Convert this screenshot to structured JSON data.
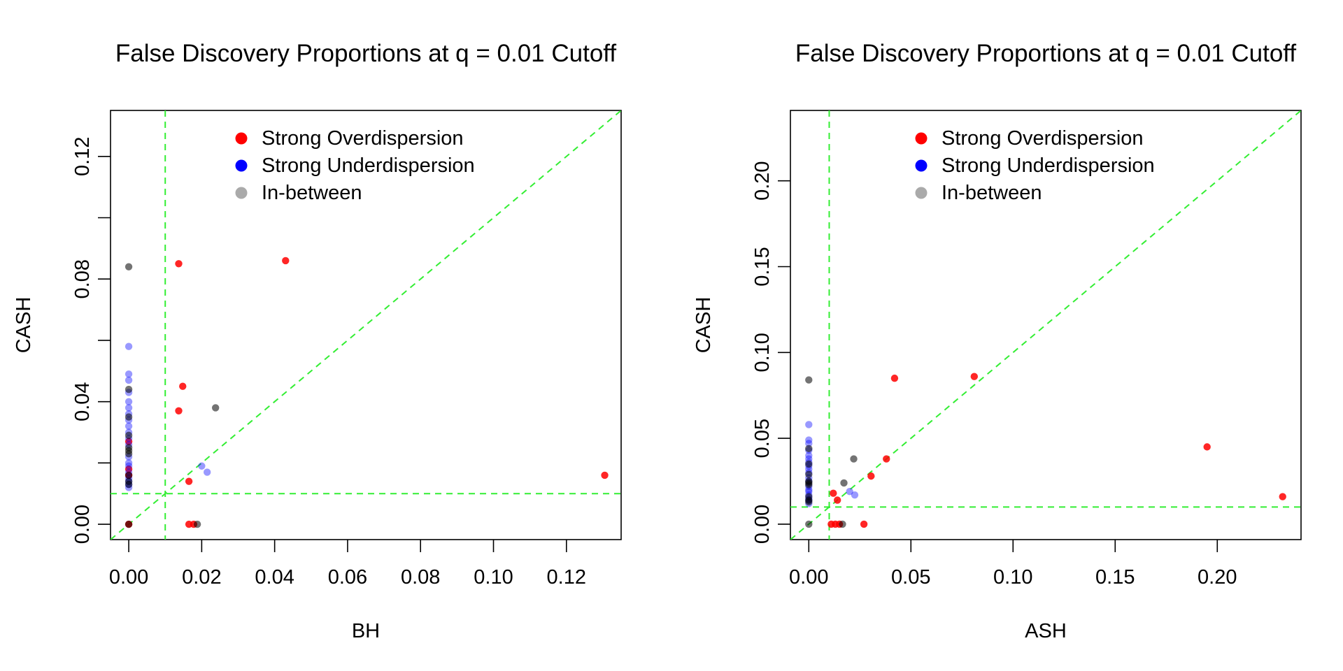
{
  "colors": {
    "overdispersion": "#ff0000",
    "underdispersion": "#0000ff",
    "inbetween": "#000000",
    "inbetween_legend": "#aaaaaa",
    "reference_lines": "#33ee33"
  },
  "chart_data": [
    {
      "type": "scatter",
      "title": "False Discovery Proportions at q = 0.01 Cutoff",
      "xlabel": "BH",
      "ylabel": "CASH",
      "xlim": [
        -0.005,
        0.135
      ],
      "ylim": [
        -0.005,
        0.135
      ],
      "x_ticks": [
        "0.00",
        "0.02",
        "0.04",
        "0.06",
        "0.08",
        "0.10",
        "0.12"
      ],
      "y_ticks": [
        "0.00",
        "0.04",
        "0.08",
        "0.12"
      ],
      "reference_lines": {
        "vline": 0.01,
        "hline": 0.01,
        "diagonal": true
      },
      "legend": {
        "position": "top",
        "entries": [
          "Strong Overdispersion",
          "Strong Underdispersion",
          "In-between"
        ]
      },
      "series": [
        {
          "name": "Strong Overdispersion",
          "points": [
            [
              0,
              0
            ],
            [
              0,
              0.016
            ],
            [
              0,
              0.018
            ],
            [
              0,
              0.027
            ],
            [
              0.0137,
              0.085
            ],
            [
              0.0137,
              0.037
            ],
            [
              0.0148,
              0.045
            ],
            [
              0.0165,
              0.014
            ],
            [
              0.0165,
              0
            ],
            [
              0.0178,
              0
            ],
            [
              0.043,
              0.086
            ],
            [
              0.1305,
              0.016
            ]
          ]
        },
        {
          "name": "Strong Underdispersion",
          "points": [
            [
              0,
              0.058
            ],
            [
              0,
              0.049
            ],
            [
              0,
              0.047
            ],
            [
              0,
              0.043
            ],
            [
              0,
              0.04
            ],
            [
              0,
              0.038
            ],
            [
              0,
              0.036
            ],
            [
              0,
              0.034
            ],
            [
              0,
              0.032
            ],
            [
              0,
              0.03
            ],
            [
              0,
              0.028
            ],
            [
              0,
              0.026
            ],
            [
              0,
              0.022
            ],
            [
              0,
              0.02
            ],
            [
              0,
              0.019
            ],
            [
              0,
              0.017
            ],
            [
              0,
              0.015
            ],
            [
              0,
              0.014
            ],
            [
              0,
              0.013
            ],
            [
              0,
              0.012
            ],
            [
              0.02,
              0.019
            ],
            [
              0.0215,
              0.017
            ]
          ]
        },
        {
          "name": "In-between",
          "points": [
            [
              0,
              0.084
            ],
            [
              0,
              0.044
            ],
            [
              0,
              0.035
            ],
            [
              0,
              0.029
            ],
            [
              0,
              0.025
            ],
            [
              0,
              0.024
            ],
            [
              0,
              0.023
            ],
            [
              0,
              0.016
            ],
            [
              0,
              0.014
            ],
            [
              0,
              0.013
            ],
            [
              0,
              0
            ],
            [
              0.0188,
              0
            ],
            [
              0.0238,
              0.038
            ]
          ]
        }
      ]
    },
    {
      "type": "scatter",
      "title": "False Discovery Proportions at q = 0.01 Cutoff",
      "xlabel": "ASH",
      "ylabel": "CASH",
      "xlim": [
        -0.009,
        0.241
      ],
      "ylim": [
        -0.009,
        0.241
      ],
      "x_ticks": [
        "0.00",
        "0.05",
        "0.10",
        "0.15",
        "0.20"
      ],
      "y_ticks": [
        "0.00",
        "0.05",
        "0.10",
        "0.15",
        "0.20"
      ],
      "reference_lines": {
        "vline": 0.01,
        "hline": 0.01,
        "diagonal": true
      },
      "legend": {
        "position": "top",
        "entries": [
          "Strong Overdispersion",
          "Strong Underdispersion",
          "In-between"
        ]
      },
      "series": [
        {
          "name": "Strong Overdispersion",
          "points": [
            [
              0.011,
              0
            ],
            [
              0.012,
              0.018
            ],
            [
              0.013,
              0
            ],
            [
              0.014,
              0.014
            ],
            [
              0.015,
              0
            ],
            [
              0.027,
              0
            ],
            [
              0.0305,
              0.028
            ],
            [
              0.038,
              0.038
            ],
            [
              0.042,
              0.085
            ],
            [
              0.081,
              0.086
            ],
            [
              0.195,
              0.045
            ],
            [
              0.232,
              0.016
            ]
          ]
        },
        {
          "name": "Strong Underdispersion",
          "points": [
            [
              0,
              0.058
            ],
            [
              0,
              0.049
            ],
            [
              0,
              0.047
            ],
            [
              0,
              0.043
            ],
            [
              0,
              0.04
            ],
            [
              0,
              0.038
            ],
            [
              0,
              0.036
            ],
            [
              0,
              0.034
            ],
            [
              0,
              0.032
            ],
            [
              0,
              0.03
            ],
            [
              0,
              0.027
            ],
            [
              0,
              0.025
            ],
            [
              0,
              0.022
            ],
            [
              0,
              0.02
            ],
            [
              0,
              0.019
            ],
            [
              0,
              0.017
            ],
            [
              0,
              0.015
            ],
            [
              0,
              0.014
            ],
            [
              0,
              0.012
            ],
            [
              0.02,
              0.019
            ],
            [
              0.0225,
              0.017
            ]
          ]
        },
        {
          "name": "In-between",
          "points": [
            [
              0,
              0.084
            ],
            [
              0,
              0.044
            ],
            [
              0,
              0.035
            ],
            [
              0,
              0.029
            ],
            [
              0,
              0.025
            ],
            [
              0,
              0.024
            ],
            [
              0,
              0.023
            ],
            [
              0,
              0.016
            ],
            [
              0,
              0.014
            ],
            [
              0,
              0.013
            ],
            [
              0,
              0
            ],
            [
              0.0165,
              0
            ],
            [
              0.0172,
              0.024
            ],
            [
              0.022,
              0.038
            ]
          ]
        }
      ]
    }
  ]
}
